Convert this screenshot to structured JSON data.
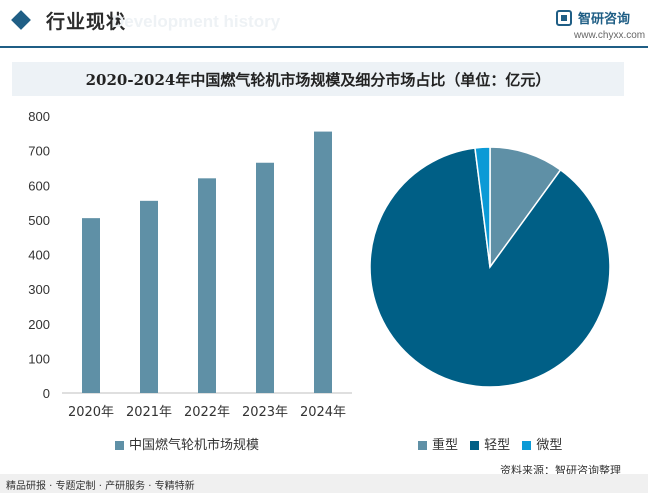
{
  "header": {
    "title": "行业现状",
    "watermark": "Development history",
    "logo_text": "智研咨询",
    "logo_url": "www.chyxx.com"
  },
  "chart_title": "2020-2024年中国燃气轮机市场规模及细分市场占比（单位：亿元）",
  "colors": {
    "accent": "#1f5e85",
    "bar": "#5f90a6",
    "pie_heavy": "#5f90a6",
    "pie_light": "#005f86",
    "pie_micro": "#0b9ad6"
  },
  "chart_data": [
    {
      "type": "bar",
      "categories": [
        "2020年",
        "2021年",
        "2022年",
        "2023年",
        "2024年"
      ],
      "series": [
        {
          "name": "中国燃气轮机市场规模",
          "values": [
            505,
            555,
            620,
            665,
            755
          ]
        }
      ],
      "yticks": [
        "0",
        "100",
        "200",
        "300",
        "400",
        "500",
        "600",
        "700",
        "800"
      ],
      "ylim": [
        0,
        800
      ],
      "grid": false,
      "legend": "bottom"
    },
    {
      "type": "pie",
      "slices": [
        {
          "name": "重型",
          "value": 10
        },
        {
          "name": "轻型",
          "value": 88
        },
        {
          "name": "微型",
          "value": 2
        }
      ],
      "legend": "bottom"
    }
  ],
  "legend": {
    "bar_label": "中国燃气轮机市场规模",
    "pie_labels": [
      "重型",
      "轻型",
      "微型"
    ]
  },
  "footer": {
    "left": "精品研报 · 专题定制 · 产研服务 · 专精特新",
    "source": "资料来源：智研咨询整理"
  }
}
